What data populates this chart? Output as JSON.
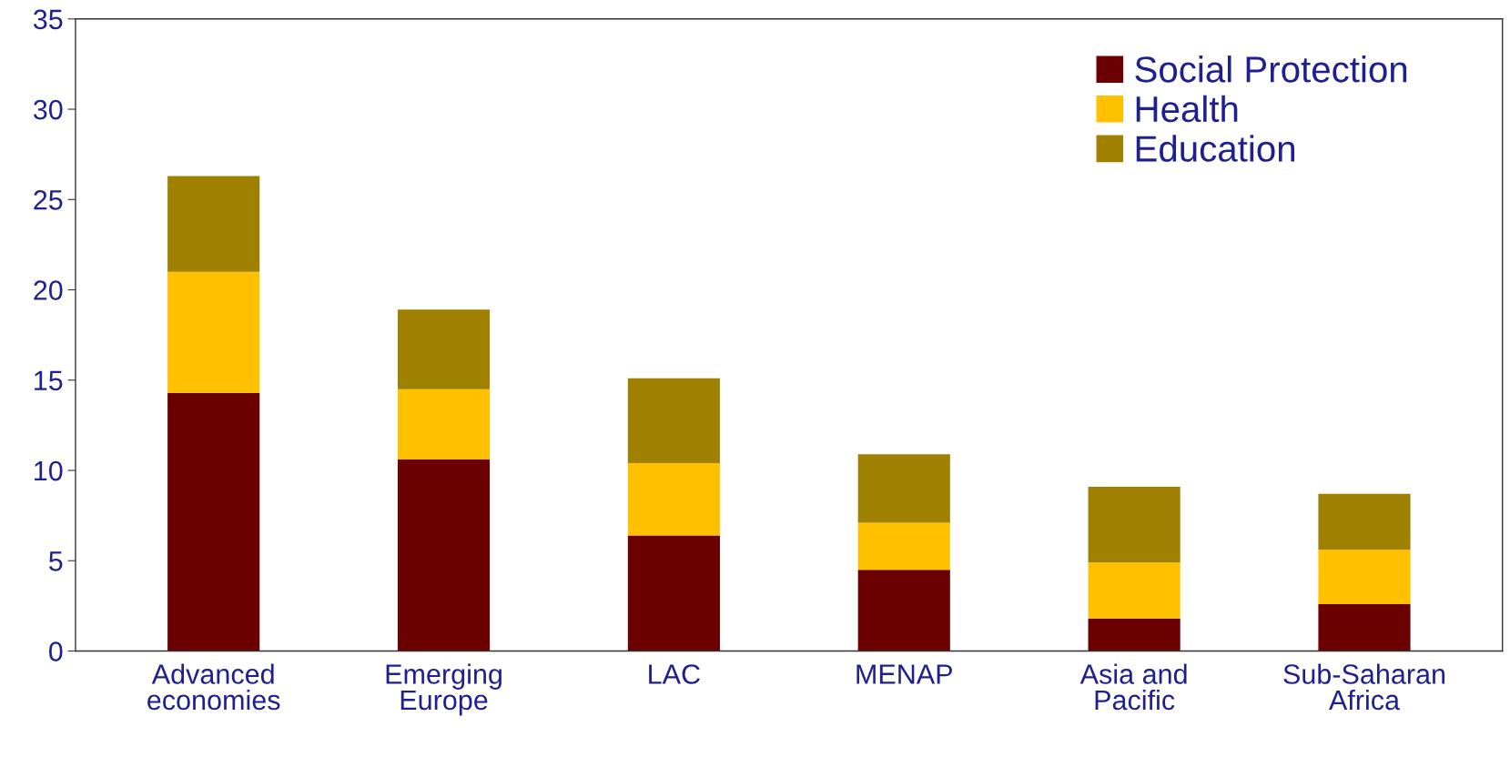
{
  "chart_data": {
    "type": "bar",
    "stacked": true,
    "categories": [
      "Advanced\neconomies",
      "Emerging\nEurope",
      "LAC",
      "MENAP",
      "Asia and\nPacific",
      "Sub-Saharan\nAfrica"
    ],
    "series": [
      {
        "name": "Social Protection",
        "color": "#6b0000",
        "values": [
          14.3,
          10.6,
          6.4,
          4.5,
          1.8,
          2.6
        ]
      },
      {
        "name": "Health",
        "color": "#ffc000",
        "values": [
          6.7,
          3.9,
          4.0,
          2.6,
          3.1,
          3.0
        ]
      },
      {
        "name": "Education",
        "color": "#a08000",
        "values": [
          5.3,
          4.4,
          4.7,
          3.8,
          4.2,
          3.1
        ]
      }
    ],
    "ylim": [
      0,
      35
    ],
    "yticks": [
      0,
      5,
      10,
      15,
      20,
      25,
      30,
      35
    ],
    "grid": false,
    "legend": "top right"
  }
}
